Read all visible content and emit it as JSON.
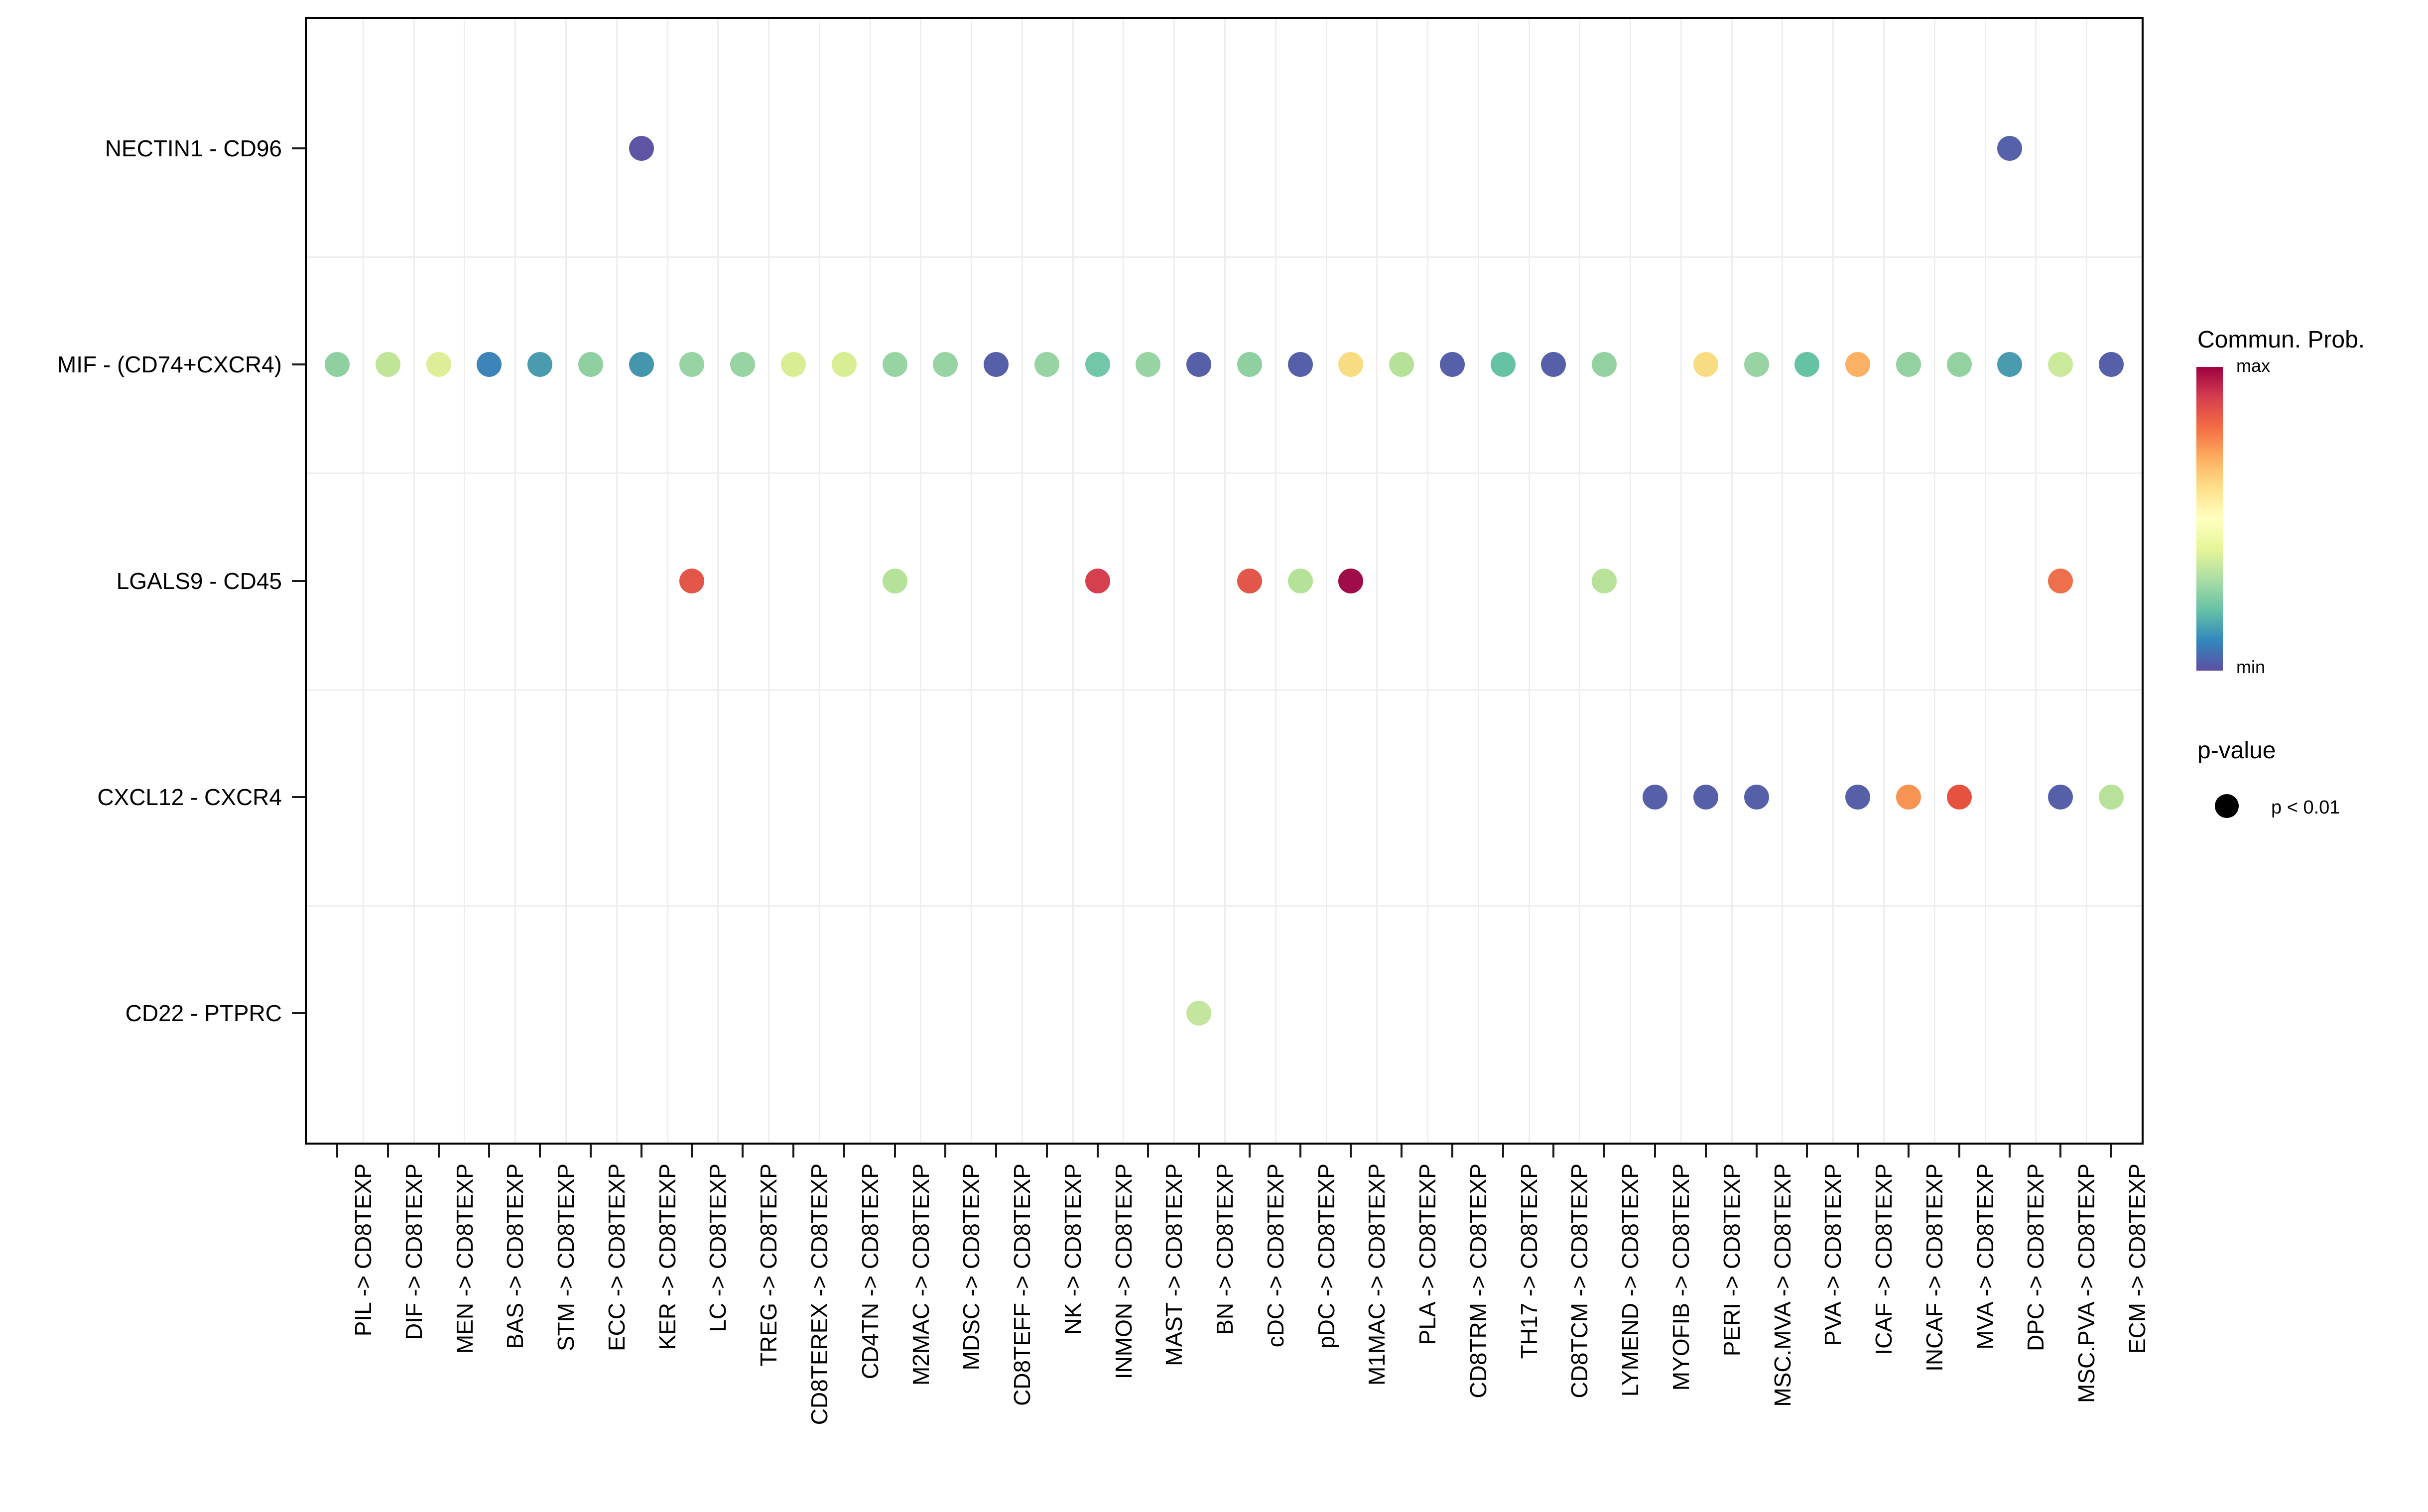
{
  "chart_data": {
    "type": "scatter",
    "title": "",
    "xlabel": "",
    "ylabel": "",
    "grid": "faint minor gridlines between rows and columns",
    "legend_position": "right",
    "x_categories": [
      "PIL -> CD8TEXP",
      "DIF -> CD8TEXP",
      "MEN -> CD8TEXP",
      "BAS -> CD8TEXP",
      "STM -> CD8TEXP",
      "ECC -> CD8TEXP",
      "KER -> CD8TEXP",
      "LC -> CD8TEXP",
      "TREG -> CD8TEXP",
      "CD8TEREX -> CD8TEXP",
      "CD4TN -> CD8TEXP",
      "M2MAC -> CD8TEXP",
      "MDSC -> CD8TEXP",
      "CD8TEFF -> CD8TEXP",
      "NK -> CD8TEXP",
      "INMON -> CD8TEXP",
      "MAST -> CD8TEXP",
      "BN -> CD8TEXP",
      "cDC -> CD8TEXP",
      "pDC -> CD8TEXP",
      "M1MAC -> CD8TEXP",
      "PLA -> CD8TEXP",
      "CD8TRM -> CD8TEXP",
      "TH17 -> CD8TEXP",
      "CD8TCM -> CD8TEXP",
      "LYMEND -> CD8TEXP",
      "MYOFIB -> CD8TEXP",
      "PERI -> CD8TEXP",
      "MSC.MVA -> CD8TEXP",
      "PVA -> CD8TEXP",
      "ICAF -> CD8TEXP",
      "INCAF -> CD8TEXP",
      "MVA -> CD8TEXP",
      "DPC -> CD8TEXP",
      "MSC.PVA -> CD8TEXP",
      "ECM -> CD8TEXP"
    ],
    "y_categories": [
      "NECTIN1 - CD96",
      "MIF - (CD74+CXCR4)",
      "LGALS9 - CD45",
      "CXCL12 - CXCR4",
      "CD22 - PTPRC"
    ],
    "color_scale": {
      "title": "Commun. Prob.",
      "max_label": "max",
      "min_label": "min",
      "palette": "Spectral reversed (max = dark red, min = dark purple-blue)"
    },
    "points": [
      {
        "y": "NECTIN1 - CD96",
        "x": "KER",
        "color": "#5e55a5"
      },
      {
        "y": "NECTIN1 - CD96",
        "x": "DPC",
        "color": "#5561a9"
      },
      {
        "y": "MIF - (CD74+CXCR4)",
        "x": "PIL",
        "color": "#8fd0a0"
      },
      {
        "y": "MIF - (CD74+CXCR4)",
        "x": "DIF",
        "color": "#c0e598"
      },
      {
        "y": "MIF - (CD74+CXCR4)",
        "x": "MEN",
        "color": "#dcee97"
      },
      {
        "y": "MIF - (CD74+CXCR4)",
        "x": "BAS",
        "color": "#3d84b8"
      },
      {
        "y": "MIF - (CD74+CXCR4)",
        "x": "STM",
        "color": "#4a9bb0"
      },
      {
        "y": "MIF - (CD74+CXCR4)",
        "x": "ECC",
        "color": "#8fd0a0"
      },
      {
        "y": "MIF - (CD74+CXCR4)",
        "x": "KER",
        "color": "#4595ad"
      },
      {
        "y": "MIF - (CD74+CXCR4)",
        "x": "LC",
        "color": "#98d3a3"
      },
      {
        "y": "MIF - (CD74+CXCR4)",
        "x": "TREG",
        "color": "#98d3a3"
      },
      {
        "y": "MIF - (CD74+CXCR4)",
        "x": "CD8TEREX",
        "color": "#d9ed94"
      },
      {
        "y": "MIF - (CD74+CXCR4)",
        "x": "CD4TN",
        "color": "#d9ed94"
      },
      {
        "y": "MIF - (CD74+CXCR4)",
        "x": "M2MAC",
        "color": "#98d3a3"
      },
      {
        "y": "MIF - (CD74+CXCR4)",
        "x": "MDSC",
        "color": "#98d3a3"
      },
      {
        "y": "MIF - (CD74+CXCR4)",
        "x": "CD8TEFF",
        "color": "#5560a8"
      },
      {
        "y": "MIF - (CD74+CXCR4)",
        "x": "NK",
        "color": "#98d3a3"
      },
      {
        "y": "MIF - (CD74+CXCR4)",
        "x": "INMON",
        "color": "#72c7a8"
      },
      {
        "y": "MIF - (CD74+CXCR4)",
        "x": "MAST",
        "color": "#98d3a3"
      },
      {
        "y": "MIF - (CD74+CXCR4)",
        "x": "BN",
        "color": "#5560a8"
      },
      {
        "y": "MIF - (CD74+CXCR4)",
        "x": "cDC",
        "color": "#8fd0a0"
      },
      {
        "y": "MIF - (CD74+CXCR4)",
        "x": "pDC",
        "color": "#5560a8"
      },
      {
        "y": "MIF - (CD74+CXCR4)",
        "x": "M1MAC",
        "color": "#f8dc81"
      },
      {
        "y": "MIF - (CD74+CXCR4)",
        "x": "PLA",
        "color": "#b5e199"
      },
      {
        "y": "MIF - (CD74+CXCR4)",
        "x": "CD8TRM",
        "color": "#5560a8"
      },
      {
        "y": "MIF - (CD74+CXCR4)",
        "x": "TH17",
        "color": "#66c2a4"
      },
      {
        "y": "MIF - (CD74+CXCR4)",
        "x": "CD8TCM",
        "color": "#5560a8"
      },
      {
        "y": "MIF - (CD74+CXCR4)",
        "x": "LYMEND",
        "color": "#94d1a0"
      },
      {
        "y": "MIF - (CD74+CXCR4)",
        "x": "PERI",
        "color": "#f8dc81"
      },
      {
        "y": "MIF - (CD74+CXCR4)",
        "x": "MSC.MVA",
        "color": "#98d3a3"
      },
      {
        "y": "MIF - (CD74+CXCR4)",
        "x": "PVA",
        "color": "#66c2a4"
      },
      {
        "y": "MIF - (CD74+CXCR4)",
        "x": "ICAF",
        "color": "#fbb163"
      },
      {
        "y": "MIF - (CD74+CXCR4)",
        "x": "INCAF",
        "color": "#94d1a0"
      },
      {
        "y": "MIF - (CD74+CXCR4)",
        "x": "MVA",
        "color": "#94d1a0"
      },
      {
        "y": "MIF - (CD74+CXCR4)",
        "x": "DPC",
        "color": "#4a9bb0"
      },
      {
        "y": "MIF - (CD74+CXCR4)",
        "x": "MSC.PVA",
        "color": "#cbe99b"
      },
      {
        "y": "MIF - (CD74+CXCR4)",
        "x": "ECM",
        "color": "#5560a8"
      },
      {
        "y": "LGALS9 - CD45",
        "x": "LC",
        "color": "#e2574a"
      },
      {
        "y": "LGALS9 - CD45",
        "x": "M2MAC",
        "color": "#b5e199"
      },
      {
        "y": "LGALS9 - CD45",
        "x": "INMON",
        "color": "#d6404e"
      },
      {
        "y": "LGALS9 - CD45",
        "x": "cDC",
        "color": "#e2574a"
      },
      {
        "y": "LGALS9 - CD45",
        "x": "pDC",
        "color": "#b5e199"
      },
      {
        "y": "LGALS9 - CD45",
        "x": "M1MAC",
        "color": "#a00c47"
      },
      {
        "y": "LGALS9 - CD45",
        "x": "LYMEND",
        "color": "#b8e299"
      },
      {
        "y": "LGALS9 - CD45",
        "x": "MSC.PVA",
        "color": "#ee6f4c"
      },
      {
        "y": "CXCL12 - CXCR4",
        "x": "MYOFIB",
        "color": "#5560a8"
      },
      {
        "y": "CXCL12 - CXCR4",
        "x": "PERI",
        "color": "#5560a8"
      },
      {
        "y": "CXCL12 - CXCR4",
        "x": "MSC.MVA",
        "color": "#5560a8"
      },
      {
        "y": "CXCL12 - CXCR4",
        "x": "ICAF",
        "color": "#5560a8"
      },
      {
        "y": "CXCL12 - CXCR4",
        "x": "INCAF",
        "color": "#f79353"
      },
      {
        "y": "CXCL12 - CXCR4",
        "x": "MVA",
        "color": "#e5533f"
      },
      {
        "y": "CXCL12 - CXCR4",
        "x": "MSC.PVA",
        "color": "#5560a8"
      },
      {
        "y": "CXCL12 - CXCR4",
        "x": "ECM",
        "color": "#b8e299"
      },
      {
        "y": "CD22 - PTPRC",
        "x": "BN",
        "color": "#c3e59d"
      }
    ]
  },
  "legend": {
    "colorbar_title": "Commun. Prob.",
    "colorbar_max_label": "max",
    "colorbar_min_label": "min",
    "colorbar_colors_top_to_bottom": [
      "#9e0142",
      "#d53e4f",
      "#f46d43",
      "#fdae61",
      "#fee08b",
      "#ffffbf",
      "#e6f598",
      "#abdda4",
      "#66c2a5",
      "#3288bd",
      "#5e4fa2"
    ],
    "pvalue_title": "p-value",
    "pvalue_item_label": "p < 0.01",
    "pvalue_dot_color": "#000000"
  }
}
